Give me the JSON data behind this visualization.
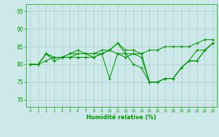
{
  "xlabel": "Humidité relative (%)",
  "ylabel": "",
  "xlim": [
    -0.5,
    23.5
  ],
  "ylim": [
    68,
    97
  ],
  "yticks": [
    70,
    75,
    80,
    85,
    90,
    95
  ],
  "xticks": [
    0,
    1,
    2,
    3,
    4,
    5,
    6,
    7,
    8,
    9,
    10,
    11,
    12,
    13,
    14,
    15,
    16,
    17,
    18,
    19,
    20,
    21,
    22,
    23
  ],
  "background_color": "#cce8e8",
  "grid_color": "#aacccc",
  "line_color": "#009900",
  "series": [
    [
      80,
      80,
      83,
      81,
      82,
      82,
      83,
      83,
      83,
      83,
      84,
      86,
      84,
      84,
      83,
      84,
      84,
      85,
      85,
      85,
      85,
      86,
      87,
      87
    ],
    [
      80,
      80,
      83,
      82,
      82,
      83,
      83,
      83,
      82,
      83,
      84,
      83,
      82,
      83,
      82,
      75,
      75,
      76,
      76,
      79,
      81,
      81,
      84,
      86
    ],
    [
      80,
      80,
      81,
      82,
      82,
      82,
      82,
      82,
      82,
      83,
      76,
      83,
      83,
      83,
      83,
      75,
      75,
      76,
      76,
      79,
      81,
      81,
      84,
      86
    ],
    [
      80,
      80,
      83,
      82,
      82,
      83,
      84,
      83,
      83,
      84,
      84,
      86,
      83,
      80,
      79,
      75,
      75,
      76,
      76,
      79,
      81,
      84,
      84,
      86
    ]
  ]
}
